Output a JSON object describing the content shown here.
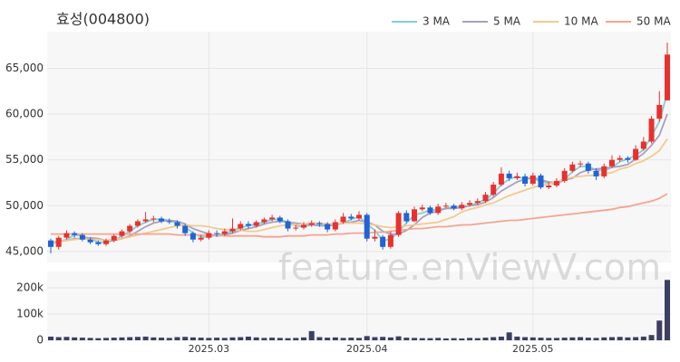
{
  "chart_data": {
    "type": "candlestick",
    "title": "효성(004800)",
    "watermark": "feature.enViewV.com",
    "up_color": "#e8312f",
    "down_color": "#1f63d6",
    "volume_color": "#3b3f63",
    "grid": true,
    "categories": [
      null,
      null,
      null,
      null,
      null,
      null,
      null,
      null,
      null,
      null,
      null,
      null,
      null,
      null,
      null,
      null,
      null,
      null,
      null,
      null,
      "2025.03",
      null,
      null,
      null,
      null,
      null,
      null,
      null,
      null,
      null,
      null,
      null,
      null,
      null,
      null,
      null,
      null,
      null,
      null,
      null,
      "2025.04",
      null,
      null,
      null,
      null,
      null,
      null,
      null,
      null,
      null,
      null,
      null,
      null,
      null,
      null,
      null,
      null,
      null,
      null,
      null,
      null,
      "2025.05",
      null,
      null,
      null,
      null,
      null,
      null,
      null,
      null,
      null,
      null,
      null,
      null,
      null,
      null,
      null,
      null,
      null
    ],
    "open": [
      46200,
      45500,
      46500,
      47000,
      46800,
      46300,
      46000,
      45800,
      46200,
      46700,
      47200,
      47800,
      48300,
      48500,
      48600,
      48300,
      48200,
      47800,
      47000,
      46300,
      46500,
      47000,
      46900,
      47200,
      47500,
      48000,
      47800,
      48200,
      48500,
      48700,
      48300,
      47500,
      47600,
      47900,
      48100,
      48000,
      47400,
      48200,
      48800,
      48600,
      49000,
      46400,
      46600,
      45500,
      46800,
      49200,
      48300,
      49600,
      49800,
      49200,
      49900,
      50000,
      49700,
      50100,
      50300,
      50500,
      51200,
      52300,
      53500,
      53000,
      53200,
      52400,
      53300,
      52000,
      52200,
      52700,
      53800,
      54500,
      54600,
      53800,
      53200,
      54300,
      55000,
      55200,
      55000,
      56200,
      57000,
      59500,
      61500
    ],
    "high": [
      46400,
      46700,
      47300,
      47200,
      47000,
      46500,
      46200,
      46400,
      46900,
      47400,
      48000,
      48500,
      49300,
      48900,
      48800,
      48600,
      48400,
      48000,
      47200,
      46800,
      47300,
      47300,
      47500,
      48600,
      48300,
      48300,
      48400,
      48700,
      49000,
      48900,
      48500,
      47900,
      48200,
      48400,
      48300,
      48200,
      48500,
      49200,
      49100,
      49400,
      49200,
      47400,
      46800,
      47200,
      49400,
      49500,
      49900,
      50100,
      50000,
      50200,
      50300,
      50200,
      50400,
      50600,
      50800,
      51500,
      52600,
      54200,
      53800,
      53600,
      53500,
      53600,
      53500,
      52600,
      53000,
      54100,
      54800,
      54900,
      54800,
      54100,
      54600,
      55500,
      55500,
      55400,
      56600,
      57500,
      59800,
      62500,
      67800
    ],
    "low": [
      44800,
      45200,
      46300,
      46500,
      46100,
      45800,
      45600,
      45600,
      46000,
      46500,
      47000,
      47600,
      48100,
      48200,
      48100,
      48000,
      47500,
      46700,
      46000,
      46100,
      46300,
      46600,
      46700,
      47000,
      47300,
      47500,
      47600,
      48000,
      48300,
      48100,
      47200,
      47300,
      47400,
      47700,
      47700,
      47100,
      47200,
      48000,
      48400,
      48400,
      46100,
      46100,
      45200,
      45300,
      46600,
      48100,
      48200,
      49400,
      49000,
      49000,
      49700,
      49500,
      49500,
      49900,
      50100,
      50300,
      51000,
      52100,
      52700,
      52800,
      52100,
      52200,
      51800,
      51800,
      52000,
      52500,
      53600,
      54200,
      53500,
      52800,
      53000,
      54100,
      54800,
      54700,
      54900,
      56000,
      56800,
      59200,
      61500
    ],
    "close": [
      45500,
      46500,
      47000,
      46800,
      46300,
      46000,
      45800,
      46200,
      46700,
      47200,
      47800,
      48300,
      48500,
      48600,
      48300,
      48200,
      47800,
      47000,
      46300,
      46500,
      47000,
      46900,
      47200,
      47500,
      48000,
      47800,
      48200,
      48500,
      48700,
      48300,
      47500,
      47600,
      47900,
      48100,
      48000,
      47400,
      48200,
      48800,
      48600,
      49000,
      46400,
      46600,
      45500,
      46800,
      49200,
      48300,
      49600,
      49800,
      49200,
      49900,
      50000,
      49700,
      50100,
      50300,
      50500,
      51200,
      52300,
      53500,
      53000,
      53200,
      52400,
      53300,
      52000,
      52200,
      52700,
      53800,
      54500,
      54600,
      53800,
      53200,
      54300,
      55000,
      55200,
      55000,
      56200,
      57000,
      59500,
      61000,
      66500
    ],
    "volume": [
      14000,
      12000,
      13000,
      11000,
      10000,
      9000,
      8000,
      9000,
      10000,
      11000,
      12000,
      13000,
      14000,
      11000,
      10000,
      9000,
      12000,
      13000,
      11000,
      10000,
      9000,
      10000,
      9000,
      11000,
      12000,
      14000,
      11000,
      9000,
      10000,
      9000,
      8000,
      9000,
      11000,
      35000,
      12000,
      10000,
      11000,
      9000,
      10000,
      9000,
      16000,
      12000,
      13000,
      11000,
      15000,
      10000,
      9000,
      8000,
      8000,
      9000,
      7000,
      8000,
      7000,
      9000,
      8000,
      10000,
      12000,
      14000,
      30000,
      14000,
      12000,
      11000,
      10000,
      9000,
      9000,
      10000,
      11000,
      12000,
      10000,
      9000,
      11000,
      12000,
      13000,
      11000,
      12000,
      14000,
      20000,
      75000,
      230000
    ],
    "series": [
      {
        "name": "3 MA",
        "color": "#7fd1d6",
        "values": [
          45800,
          46100,
          46300,
          46800,
          46700,
          46400,
          46000,
          46000,
          46200,
          46700,
          47200,
          47800,
          48200,
          48500,
          48500,
          48400,
          48100,
          47700,
          47000,
          46600,
          46600,
          46800,
          47000,
          47200,
          47600,
          47800,
          48000,
          48200,
          48500,
          48500,
          48200,
          47800,
          47700,
          47900,
          48000,
          47800,
          47900,
          48100,
          48500,
          48800,
          48000,
          47300,
          46200,
          46300,
          47200,
          48100,
          49000,
          49200,
          49500,
          49600,
          49700,
          49900,
          49900,
          50000,
          50300,
          50700,
          51300,
          52300,
          52900,
          53200,
          52900,
          53000,
          52600,
          52500,
          52300,
          52900,
          53700,
          54300,
          54300,
          53900,
          53800,
          54200,
          54800,
          55100,
          55500,
          56100,
          57600,
          59200,
          62300
        ]
      },
      {
        "name": "5 MA",
        "color": "#a9a0c0",
        "values": [
          46000,
          46100,
          46200,
          46400,
          46400,
          46500,
          46400,
          46200,
          46200,
          46400,
          46700,
          47200,
          47700,
          48100,
          48300,
          48400,
          48300,
          48000,
          47500,
          47200,
          46900,
          46700,
          46800,
          47000,
          47300,
          47500,
          47700,
          48000,
          48200,
          48300,
          48200,
          48100,
          48000,
          47900,
          47800,
          47800,
          47900,
          48100,
          48200,
          48400,
          48200,
          47900,
          47200,
          46900,
          46900,
          47300,
          47900,
          48700,
          49200,
          49400,
          49700,
          49700,
          49800,
          50000,
          50100,
          50400,
          50900,
          51600,
          52100,
          52600,
          52900,
          53100,
          52800,
          52600,
          52500,
          52800,
          53000,
          53600,
          53900,
          54000,
          54100,
          54200,
          54300,
          54500,
          55100,
          55700,
          56600,
          57700,
          60000
        ]
      },
      {
        "name": "10 MA",
        "color": "#f3c98f",
        "values": [
          46000,
          46100,
          46200,
          46300,
          46400,
          46300,
          46300,
          46200,
          46300,
          46400,
          46600,
          46800,
          47000,
          47200,
          47400,
          47600,
          47800,
          47900,
          47800,
          47800,
          47700,
          47500,
          47400,
          47300,
          47300,
          47200,
          47200,
          47400,
          47600,
          47800,
          47900,
          47900,
          48000,
          48100,
          48100,
          48000,
          48000,
          48100,
          48100,
          48100,
          48000,
          47900,
          47700,
          47600,
          47700,
          47800,
          47900,
          48000,
          48100,
          48200,
          48500,
          48800,
          49300,
          49600,
          49800,
          50100,
          50300,
          50700,
          51100,
          51400,
          51700,
          52000,
          52200,
          52400,
          52600,
          52900,
          53100,
          53200,
          53300,
          53300,
          53500,
          53600,
          54000,
          54200,
          54600,
          54900,
          55400,
          56000,
          57300
        ]
      },
      {
        "name": "50 MA",
        "color": "#f4a590",
        "values": [
          46900,
          46900,
          46900,
          46900,
          46900,
          46900,
          46900,
          46900,
          46900,
          46900,
          46900,
          46900,
          46900,
          46900,
          46900,
          46900,
          46800,
          46800,
          46800,
          46800,
          46800,
          46800,
          46700,
          46700,
          46700,
          46700,
          46700,
          46600,
          46600,
          46600,
          46700,
          46700,
          46700,
          46800,
          46800,
          46800,
          46900,
          46900,
          47000,
          47000,
          47000,
          47100,
          47100,
          47200,
          47300,
          47400,
          47500,
          47500,
          47600,
          47700,
          47700,
          47800,
          47900,
          47900,
          48000,
          48100,
          48200,
          48300,
          48400,
          48400,
          48500,
          48600,
          48700,
          48800,
          48900,
          49000,
          49100,
          49200,
          49300,
          49400,
          49500,
          49600,
          49800,
          49900,
          50100,
          50300,
          50500,
          50800,
          51300
        ]
      }
    ],
    "ylim": [
      43800,
      69000
    ],
    "yticks": [
      {
        "value": 45000,
        "label": "45,000"
      },
      {
        "value": 50000,
        "label": "50,000"
      },
      {
        "value": 55000,
        "label": "55,000"
      },
      {
        "value": 60000,
        "label": "60,000"
      },
      {
        "value": 65000,
        "label": "65,000"
      }
    ],
    "y2lim": [
      0,
      262000
    ],
    "y2ticks": [
      0,
      {
        "value": 100000,
        "label": "100k"
      },
      {
        "value": 200000,
        "label": "200k"
      }
    ]
  }
}
